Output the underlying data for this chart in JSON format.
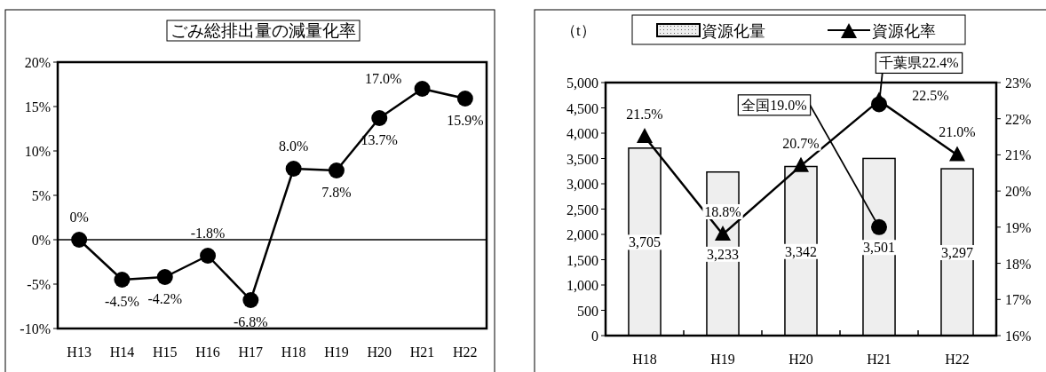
{
  "chart_data": [
    {
      "type": "line",
      "title": "ごみ総排出量の減量化率",
      "categories": [
        "H13",
        "H14",
        "H15",
        "H16",
        "H17",
        "H18",
        "H19",
        "H20",
        "H21",
        "H22"
      ],
      "series": [
        {
          "color": "#000000",
          "values": [
            0,
            -4.5,
            -4.2,
            -1.8,
            -6.8,
            8.0,
            7.8,
            13.7,
            17.0,
            15.9
          ],
          "value_labels": [
            "0%",
            "-4.5%",
            "-4.2%",
            "-1.8%",
            "-6.8%",
            "8.0%",
            "7.8%",
            "13.7%",
            "17.0%",
            "15.9%"
          ]
        }
      ],
      "ylim": [
        -10,
        20
      ],
      "yticks": [
        {
          "value": 20,
          "label": "20%"
        },
        {
          "value": 15,
          "label": "15%"
        },
        {
          "value": 10,
          "label": "10%"
        },
        {
          "value": 5,
          "label": "5%"
        },
        {
          "value": 0,
          "label": "0%"
        },
        {
          "value": -5,
          "label": "-5%"
        },
        {
          "value": -10,
          "label": "-10%"
        }
      ],
      "marker": "circle",
      "ref_lines": [
        {
          "axis": "y",
          "value": 0
        }
      ],
      "legend": false,
      "grid": false
    },
    {
      "type": "bar",
      "ylabel": "（t）",
      "categories": [
        "H18",
        "H19",
        "H20",
        "H21",
        "H22"
      ],
      "series": [
        {
          "name": "資源化量",
          "color": "#eeeeee",
          "values": [
            3705,
            3233,
            3342,
            3501,
            3297
          ],
          "value_labels": [
            "3,705",
            "3,233",
            "3,342",
            "3,501",
            "3,297"
          ]
        },
        {
          "name": "資源化率",
          "type": "line",
          "axis": "y2",
          "color": "#000000",
          "marker": "triangle",
          "values": [
            21.5,
            18.8,
            20.7,
            22.5,
            21.0
          ],
          "value_labels": [
            "21.5%",
            "18.8%",
            "20.7%",
            "22.5%",
            "21.0%"
          ]
        },
        {
          "name": "千葉県22.4%",
          "type": "scatter",
          "axis": "y2",
          "color": "#000000",
          "marker": "circle",
          "x": [
            "H21"
          ],
          "values": [
            22.4
          ]
        },
        {
          "name": "全国19.0%",
          "type": "scatter",
          "axis": "y2",
          "color": "#000000",
          "marker": "circle",
          "x": [
            "H21"
          ],
          "values": [
            19.0
          ]
        }
      ],
      "ylim": [
        0,
        5000
      ],
      "yticks": [
        {
          "value": 0,
          "label": "0"
        },
        {
          "value": 500,
          "label": "500"
        },
        {
          "value": 1000,
          "label": "1,000"
        },
        {
          "value": 1500,
          "label": "1,500"
        },
        {
          "value": 2000,
          "label": "2,000"
        },
        {
          "value": 2500,
          "label": "2,500"
        },
        {
          "value": 3000,
          "label": "3,000"
        },
        {
          "value": 3500,
          "label": "3,500"
        },
        {
          "value": 4000,
          "label": "4,000"
        },
        {
          "value": 4500,
          "label": "4,500"
        },
        {
          "value": 5000,
          "label": "5,000"
        }
      ],
      "y2lim": [
        16,
        23
      ],
      "y2ticks": [
        {
          "value": 16,
          "label": "16%"
        },
        {
          "value": 17,
          "label": "17%"
        },
        {
          "value": 18,
          "label": "18%"
        },
        {
          "value": 19,
          "label": "19%"
        },
        {
          "value": 20,
          "label": "20%"
        },
        {
          "value": 21,
          "label": "21%"
        },
        {
          "value": 22,
          "label": "22%"
        },
        {
          "value": 23,
          "label": "23%"
        }
      ],
      "legend": "top",
      "grid": false
    }
  ]
}
